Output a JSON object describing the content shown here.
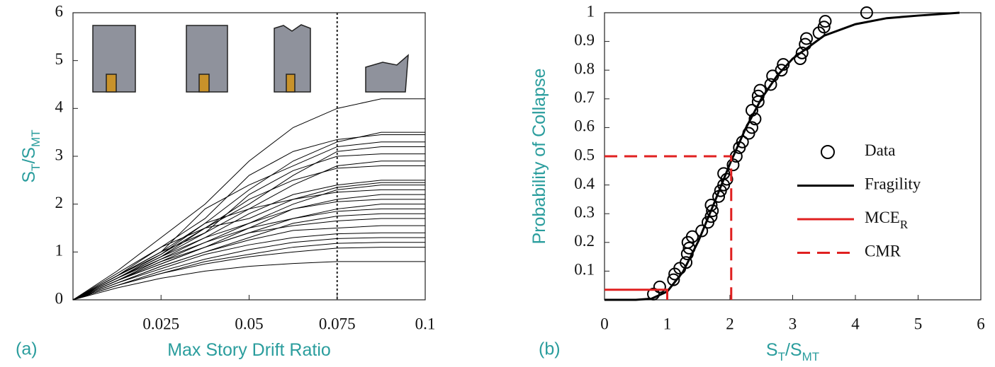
{
  "chart_data": [
    {
      "type": "line",
      "panel": "(a)",
      "xlabel": [
        {
          "text": "Max Story Drift Ratio"
        }
      ],
      "ylabel": [
        {
          "text": "S"
        },
        {
          "text": "T",
          "sub": true
        },
        {
          "text": "/S"
        },
        {
          "text": "MT",
          "sub": true
        }
      ],
      "xlim": [
        0,
        0.1
      ],
      "xticks": [
        0.025,
        0.05,
        0.075,
        0.1
      ],
      "ylim": [
        0,
        6
      ],
      "yticks": [
        0,
        1,
        2,
        3,
        4,
        5,
        6
      ],
      "vline": 0.075,
      "x": [
        0,
        0.0125,
        0.025,
        0.0375,
        0.05,
        0.0625,
        0.075,
        0.0875,
        0.1
      ],
      "series": [
        {
          "color": "#000000",
          "values": [
            0,
            0.6,
            1.3,
            2.0,
            2.9,
            3.6,
            4.0,
            4.2,
            4.2
          ]
        },
        {
          "color": "#000000",
          "values": [
            0,
            0.5,
            1.0,
            1.6,
            2.3,
            2.9,
            3.3,
            3.5,
            3.5
          ]
        },
        {
          "color": "#000000",
          "values": [
            0,
            0.55,
            1.1,
            1.7,
            2.6,
            3.1,
            3.35,
            3.45,
            3.45
          ]
        },
        {
          "color": "#000000",
          "values": [
            0,
            0.5,
            1.0,
            1.9,
            2.4,
            2.8,
            3.2,
            3.3,
            3.3
          ]
        },
        {
          "color": "#000000",
          "values": [
            0,
            0.45,
            0.9,
            1.5,
            2.0,
            2.6,
            3.1,
            3.2,
            3.2
          ]
        },
        {
          "color": "#000000",
          "values": [
            0,
            0.5,
            1.0,
            1.4,
            2.2,
            2.7,
            3.0,
            3.05,
            3.05
          ]
        },
        {
          "color": "#000000",
          "values": [
            0,
            0.45,
            0.95,
            1.6,
            1.9,
            2.4,
            2.8,
            2.9,
            2.9
          ]
        },
        {
          "color": "#000000",
          "values": [
            0,
            0.5,
            1.1,
            1.5,
            2.1,
            2.5,
            2.75,
            2.8,
            2.8
          ]
        },
        {
          "color": "#000000",
          "values": [
            0,
            0.45,
            0.9,
            1.3,
            1.8,
            2.2,
            2.4,
            2.5,
            2.5
          ]
        },
        {
          "color": "#000000",
          "values": [
            0,
            0.5,
            0.95,
            1.5,
            1.7,
            2.1,
            2.35,
            2.45,
            2.45
          ]
        },
        {
          "color": "#000000",
          "values": [
            0,
            0.4,
            0.85,
            1.2,
            1.6,
            2.0,
            2.3,
            2.4,
            2.4
          ]
        },
        {
          "color": "#000000",
          "values": [
            0,
            0.45,
            0.9,
            1.4,
            1.9,
            2.1,
            2.25,
            2.3,
            2.3
          ]
        },
        {
          "color": "#000000",
          "values": [
            0,
            0.4,
            0.8,
            1.1,
            1.5,
            1.9,
            2.1,
            2.2,
            2.2
          ]
        },
        {
          "color": "#000000",
          "values": [
            0,
            0.45,
            0.85,
            1.3,
            1.6,
            1.9,
            2.05,
            2.1,
            2.1
          ]
        },
        {
          "color": "#000000",
          "values": [
            0,
            0.4,
            0.75,
            1.1,
            1.4,
            1.7,
            1.9,
            2.0,
            2.0
          ]
        },
        {
          "color": "#000000",
          "values": [
            0,
            0.4,
            0.8,
            1.2,
            1.5,
            1.7,
            1.85,
            1.9,
            1.9
          ]
        },
        {
          "color": "#000000",
          "values": [
            0,
            0.35,
            0.7,
            1.0,
            1.3,
            1.6,
            1.75,
            1.8,
            1.8
          ]
        },
        {
          "color": "#000000",
          "values": [
            0,
            0.4,
            0.75,
            1.1,
            1.4,
            1.55,
            1.65,
            1.7,
            1.7
          ]
        },
        {
          "color": "#000000",
          "values": [
            0,
            0.35,
            0.7,
            1.0,
            1.25,
            1.45,
            1.5,
            1.55,
            1.55
          ]
        },
        {
          "color": "#000000",
          "values": [
            0,
            0.35,
            0.65,
            0.95,
            1.15,
            1.3,
            1.38,
            1.4,
            1.4
          ]
        },
        {
          "color": "#000000",
          "values": [
            0,
            0.3,
            0.6,
            0.85,
            1.05,
            1.2,
            1.28,
            1.3,
            1.3
          ]
        },
        {
          "color": "#000000",
          "values": [
            0,
            0.3,
            0.55,
            0.8,
            0.95,
            1.1,
            1.18,
            1.2,
            1.2
          ]
        },
        {
          "color": "#000000",
          "values": [
            0,
            0.3,
            0.55,
            0.75,
            0.9,
            1.0,
            1.08,
            1.1,
            1.1
          ]
        },
        {
          "color": "#000000",
          "values": [
            0,
            0.25,
            0.45,
            0.6,
            0.7,
            0.76,
            0.8,
            0.8,
            0.8
          ]
        }
      ]
    },
    {
      "type": "line",
      "panel": "(b)",
      "xlabel": [
        {
          "text": "S"
        },
        {
          "text": "T",
          "sub": true
        },
        {
          "text": "/S"
        },
        {
          "text": "MT",
          "sub": true
        }
      ],
      "ylabel": [
        {
          "text": "Probability of Collapse"
        }
      ],
      "xlim": [
        0,
        6
      ],
      "xticks": [
        0,
        1,
        2,
        3,
        4,
        5,
        6
      ],
      "ylim": [
        0,
        1
      ],
      "yticks": [
        0.1,
        0.2,
        0.3,
        0.4,
        0.5,
        0.6,
        0.7,
        0.8,
        0.9,
        1
      ],
      "legend": "right",
      "series": [
        {
          "name": "Data",
          "style": "markers",
          "color": "#000000",
          "x": [
            0.78,
            0.88,
            1.1,
            1.12,
            1.2,
            1.3,
            1.32,
            1.35,
            1.33,
            1.4,
            1.55,
            1.65,
            1.7,
            1.72,
            1.7,
            1.82,
            1.85,
            1.9,
            1.95,
            1.9,
            2.05,
            2.1,
            2.15,
            2.2,
            2.3,
            2.35,
            2.4,
            2.35,
            2.45,
            2.45,
            2.48,
            2.65,
            2.68,
            2.82,
            2.85,
            3.12,
            3.15,
            3.2,
            3.22,
            3.42,
            3.5,
            3.52,
            4.18
          ],
          "values": [
            0.02,
            0.045,
            0.07,
            0.09,
            0.11,
            0.13,
            0.16,
            0.18,
            0.2,
            0.22,
            0.24,
            0.27,
            0.29,
            0.31,
            0.33,
            0.36,
            0.38,
            0.4,
            0.42,
            0.44,
            0.47,
            0.5,
            0.53,
            0.55,
            0.58,
            0.6,
            0.63,
            0.66,
            0.69,
            0.71,
            0.73,
            0.75,
            0.78,
            0.8,
            0.82,
            0.84,
            0.86,
            0.89,
            0.91,
            0.93,
            0.95,
            0.97,
            1.0
          ]
        },
        {
          "name": "Fragility",
          "style": "solid",
          "color": "#000000",
          "x": [
            0,
            0.5,
            0.75,
            1,
            1.25,
            1.5,
            1.75,
            2,
            2.25,
            2.5,
            2.75,
            3,
            3.5,
            4,
            4.5,
            5,
            5.66
          ],
          "values": [
            0,
            0,
            0.004,
            0.029,
            0.097,
            0.206,
            0.338,
            0.474,
            0.597,
            0.7,
            0.78,
            0.84,
            0.92,
            0.96,
            0.981,
            0.99,
            1
          ]
        },
        {
          "name": "MCE",
          "name_sub": "R",
          "style": "solid",
          "color": "#e02020",
          "x": [
            0,
            1,
            1
          ],
          "values": [
            0.035,
            0.035,
            0
          ]
        },
        {
          "name": "CMR",
          "style": "dashed",
          "color": "#e02020",
          "x": [
            0,
            2.02,
            2.02
          ],
          "values": [
            0.5,
            0.5,
            0
          ]
        }
      ]
    }
  ]
}
